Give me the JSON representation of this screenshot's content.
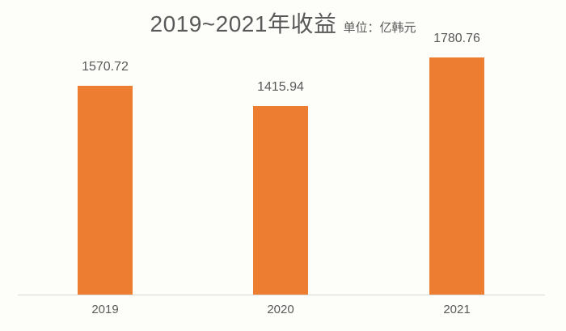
{
  "chart_data": {
    "type": "bar",
    "title": "2019~2021年收益",
    "unit_label": "单位：亿韩元",
    "categories": [
      "2019",
      "2020",
      "2021"
    ],
    "values": [
      1570.72,
      1415.94,
      1780.76
    ],
    "value_labels": [
      "1570.72",
      "1415.94",
      "1780.76"
    ],
    "xlabel": "",
    "ylabel": "",
    "ylim": [
      0,
      1800
    ],
    "grid": "off",
    "legend": "none",
    "bar_color": "#ED7D31",
    "text_color": "#595959",
    "axis_line_color": "#D9D9D9",
    "background_color": "#FDFEFA"
  }
}
